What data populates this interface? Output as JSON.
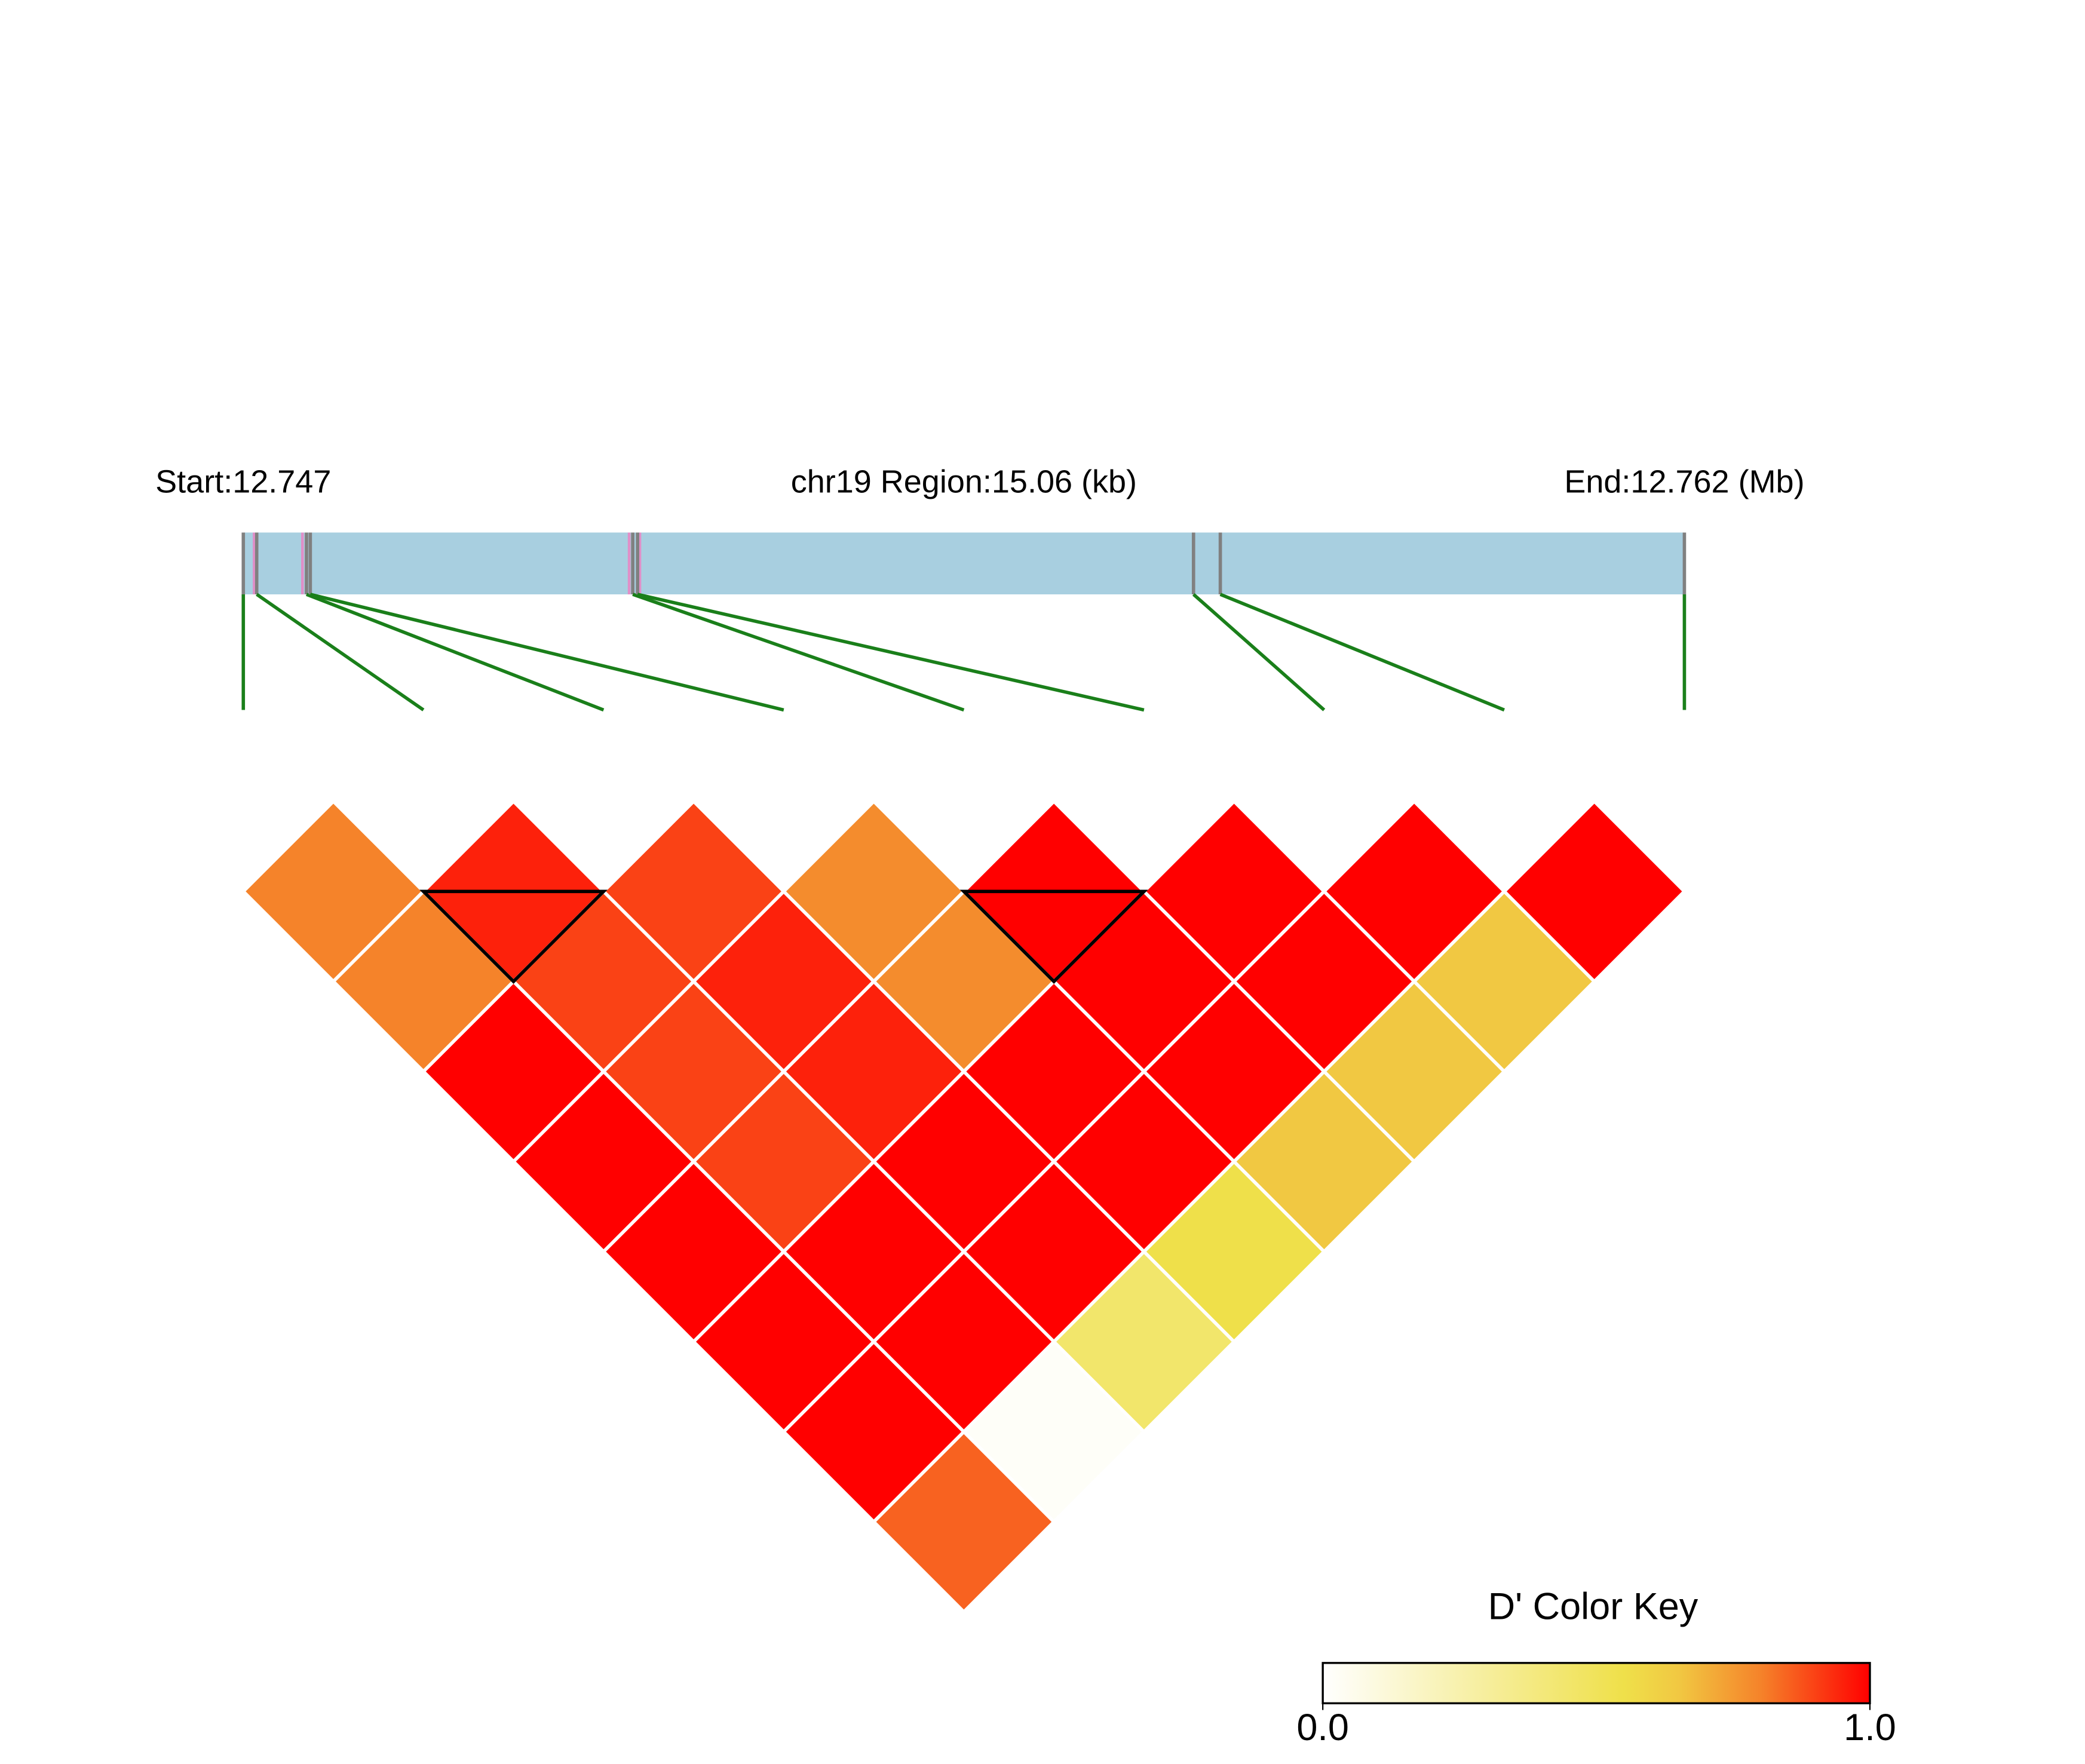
{
  "chart_data": {
    "type": "ld-heatmap",
    "start_label": "Start:12.747",
    "region_label": "chr19 Region:15.06 (kb)",
    "end_label": "End:12.762 (Mb)",
    "snp_positions_kb": [
      0,
      0.14,
      0.66,
      0.7,
      4.07,
      4.12,
      9.93,
      10.21,
      15.06
    ],
    "xlim": [
      0,
      15.06
    ],
    "dprime": [
      [
        0.8,
        0.8,
        1,
        1,
        1,
        1,
        1,
        0.85
      ],
      [
        0.95,
        0.9,
        0.9,
        0.9,
        1,
        1,
        0.02
      ],
      [
        0.9,
        0.95,
        0.95,
        1,
        1,
        0.45
      ],
      [
        0.78,
        0.78,
        1,
        1,
        0.55
      ],
      [
        1,
        1,
        1,
        0.65
      ],
      [
        1,
        1,
        0.65
      ],
      [
        1,
        0.65
      ],
      [
        1
      ]
    ],
    "ld_blocks": [
      [
        1,
        2
      ],
      [
        4,
        5
      ]
    ],
    "gene_color": "#a8cfe0",
    "marker_color": "#808080",
    "link_color": "#1a7f1a",
    "colormap": [
      [
        0,
        "#FFFFFF"
      ],
      [
        0.55,
        "#EFE04A"
      ],
      [
        0.65,
        "#F1C842"
      ],
      [
        0.8,
        "#F5832A"
      ],
      [
        1,
        "#FF0000"
      ]
    ],
    "color_key_title": "D' Color Key",
    "color_key_lim": [
      0,
      1
    ],
    "color_key_ticks": [
      {
        "value": 0,
        "label": "0.0"
      },
      {
        "value": 1,
        "label": "1.0"
      }
    ]
  }
}
